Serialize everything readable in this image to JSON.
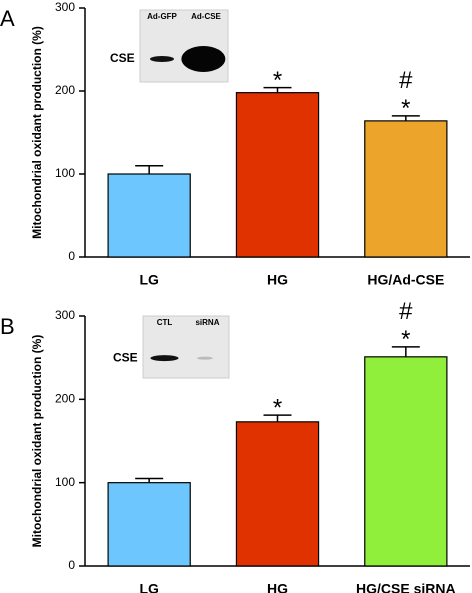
{
  "chart_data": [
    {
      "type": "bar",
      "panel": "A",
      "y_label": "Mitochondrial oxidant production (%)",
      "categories": [
        "LG",
        "HG",
        "HG/Ad-CSE"
      ],
      "values": [
        100,
        198,
        164
      ],
      "errors": [
        10,
        6,
        6
      ],
      "colors": [
        "#6ec6ff",
        "#e03200",
        "#eca42a"
      ],
      "annotations": [
        [],
        [
          "*"
        ],
        [
          "#",
          "*"
        ]
      ],
      "ylim": [
        0,
        300
      ],
      "yticks": [
        0,
        100,
        200,
        300
      ],
      "inset": {
        "lanes": [
          "Ad-GFP",
          "Ad-CSE"
        ],
        "band_label": "CSE"
      }
    },
    {
      "type": "bar",
      "panel": "B",
      "y_label": "Mitochondrial oxidant production (%)",
      "categories": [
        "LG",
        "HG",
        "HG/CSE siRNA"
      ],
      "values": [
        100,
        173,
        251
      ],
      "errors": [
        5,
        8,
        12
      ],
      "colors": [
        "#6ec6ff",
        "#e03200",
        "#8fef3a"
      ],
      "annotations": [
        [],
        [
          "*"
        ],
        [
          "#",
          "*"
        ]
      ],
      "ylim": [
        0,
        300
      ],
      "yticks": [
        0,
        100,
        200,
        300
      ],
      "inset": {
        "lanes": [
          "CTL",
          "siRNA"
        ],
        "band_label": "CSE"
      }
    }
  ]
}
